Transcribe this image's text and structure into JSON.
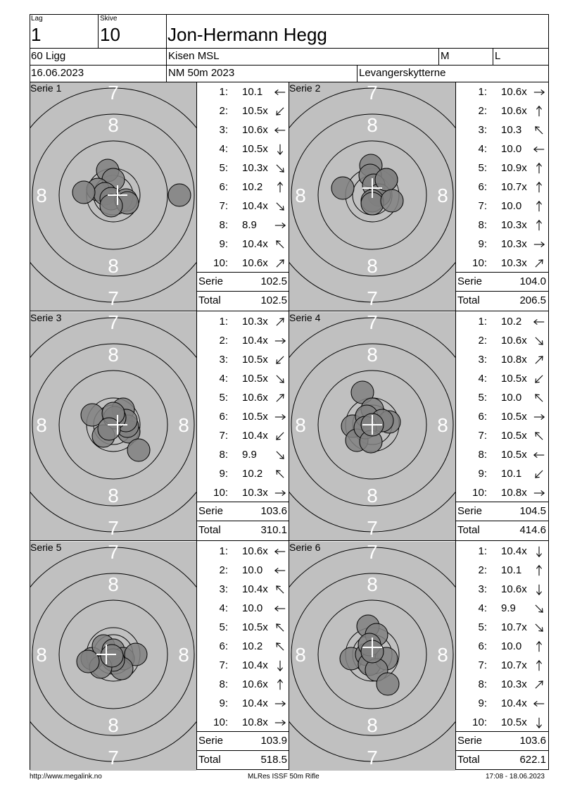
{
  "header": {
    "team_label": "Lag",
    "team_value": "1",
    "target_label": "Skive",
    "target_value": "10",
    "shooter_name": "Jon-Hermann Hegg",
    "class": "60 Ligg",
    "club": "Kisen MSL",
    "gender": "M",
    "category": "L",
    "date": "16.06.2023",
    "event": "NM 50m 2023",
    "host_club": "Levangerskytterne"
  },
  "series": [
    {
      "label": "Serie 1",
      "shots": [
        {
          "n": "1:",
          "v": "10.1",
          "dir": "left"
        },
        {
          "n": "2:",
          "v": "10.5x",
          "dir": "down-left"
        },
        {
          "n": "3:",
          "v": "10.6x",
          "dir": "left"
        },
        {
          "n": "4:",
          "v": "10.5x",
          "dir": "down"
        },
        {
          "n": "5:",
          "v": "10.3x",
          "dir": "down-right"
        },
        {
          "n": "6:",
          "v": "10.2",
          "dir": "up"
        },
        {
          "n": "7:",
          "v": "10.4x",
          "dir": "down-right"
        },
        {
          "n": "8:",
          "v": "8.9",
          "dir": "right"
        },
        {
          "n": "9:",
          "v": "10.4x",
          "dir": "up-left"
        },
        {
          "n": "10:",
          "v": "10.6x",
          "dir": "up-right"
        }
      ],
      "serie_label": "Serie",
      "serie_total": "102.5",
      "total_label": "Total",
      "running_total": "102.5"
    },
    {
      "label": "Serie 2",
      "shots": [
        {
          "n": "1:",
          "v": "10.6x",
          "dir": "right"
        },
        {
          "n": "2:",
          "v": "10.6x",
          "dir": "up"
        },
        {
          "n": "3:",
          "v": "10.3",
          "dir": "up-left"
        },
        {
          "n": "4:",
          "v": "10.0",
          "dir": "left"
        },
        {
          "n": "5:",
          "v": "10.9x",
          "dir": "up"
        },
        {
          "n": "6:",
          "v": "10.7x",
          "dir": "up"
        },
        {
          "n": "7:",
          "v": "10.0",
          "dir": "up"
        },
        {
          "n": "8:",
          "v": "10.3x",
          "dir": "up"
        },
        {
          "n": "9:",
          "v": "10.3x",
          "dir": "right"
        },
        {
          "n": "10:",
          "v": "10.3x",
          "dir": "up-right"
        }
      ],
      "serie_label": "Serie",
      "serie_total": "104.0",
      "total_label": "Total",
      "running_total": "206.5"
    },
    {
      "label": "Serie 3",
      "shots": [
        {
          "n": "1:",
          "v": "10.3x",
          "dir": "up-right"
        },
        {
          "n": "2:",
          "v": "10.4x",
          "dir": "right"
        },
        {
          "n": "3:",
          "v": "10.5x",
          "dir": "down-left"
        },
        {
          "n": "4:",
          "v": "10.5x",
          "dir": "down-right"
        },
        {
          "n": "5:",
          "v": "10.6x",
          "dir": "up-right"
        },
        {
          "n": "6:",
          "v": "10.5x",
          "dir": "right"
        },
        {
          "n": "7:",
          "v": "10.4x",
          "dir": "down-left"
        },
        {
          "n": "8:",
          "v": "9.9",
          "dir": "down-right"
        },
        {
          "n": "9:",
          "v": "10.2",
          "dir": "up-left"
        },
        {
          "n": "10:",
          "v": "10.3x",
          "dir": "right"
        }
      ],
      "serie_label": "Serie",
      "serie_total": "103.6",
      "total_label": "Total",
      "running_total": "310.1"
    },
    {
      "label": "Serie 4",
      "shots": [
        {
          "n": "1:",
          "v": "10.2",
          "dir": "left"
        },
        {
          "n": "2:",
          "v": "10.6x",
          "dir": "down-right"
        },
        {
          "n": "3:",
          "v": "10.8x",
          "dir": "up-right"
        },
        {
          "n": "4:",
          "v": "10.5x",
          "dir": "down-left"
        },
        {
          "n": "5:",
          "v": "10.0",
          "dir": "up-left"
        },
        {
          "n": "6:",
          "v": "10.5x",
          "dir": "right"
        },
        {
          "n": "7:",
          "v": "10.5x",
          "dir": "up-left"
        },
        {
          "n": "8:",
          "v": "10.5x",
          "dir": "left"
        },
        {
          "n": "9:",
          "v": "10.1",
          "dir": "down-left"
        },
        {
          "n": "10:",
          "v": "10.8x",
          "dir": "right"
        }
      ],
      "serie_label": "Serie",
      "serie_total": "104.5",
      "total_label": "Total",
      "running_total": "414.6"
    },
    {
      "label": "Serie 5",
      "shots": [
        {
          "n": "1:",
          "v": "10.6x",
          "dir": "left"
        },
        {
          "n": "2:",
          "v": "10.0",
          "dir": "left"
        },
        {
          "n": "3:",
          "v": "10.4x",
          "dir": "up-left"
        },
        {
          "n": "4:",
          "v": "10.0",
          "dir": "left"
        },
        {
          "n": "5:",
          "v": "10.5x",
          "dir": "up-left"
        },
        {
          "n": "6:",
          "v": "10.2",
          "dir": "up-left"
        },
        {
          "n": "7:",
          "v": "10.4x",
          "dir": "down"
        },
        {
          "n": "8:",
          "v": "10.6x",
          "dir": "up"
        },
        {
          "n": "9:",
          "v": "10.4x",
          "dir": "right"
        },
        {
          "n": "10:",
          "v": "10.8x",
          "dir": "right"
        }
      ],
      "serie_label": "Serie",
      "serie_total": "103.9",
      "total_label": "Total",
      "running_total": "518.5"
    },
    {
      "label": "Serie 6",
      "shots": [
        {
          "n": "1:",
          "v": "10.4x",
          "dir": "down"
        },
        {
          "n": "2:",
          "v": "10.1",
          "dir": "up"
        },
        {
          "n": "3:",
          "v": "10.6x",
          "dir": "down"
        },
        {
          "n": "4:",
          "v": "9.9",
          "dir": "down-right"
        },
        {
          "n": "5:",
          "v": "10.7x",
          "dir": "down-right"
        },
        {
          "n": "6:",
          "v": "10.0",
          "dir": "up"
        },
        {
          "n": "7:",
          "v": "10.7x",
          "dir": "up"
        },
        {
          "n": "8:",
          "v": "10.3x",
          "dir": "up-right"
        },
        {
          "n": "9:",
          "v": "10.4x",
          "dir": "left"
        },
        {
          "n": "10:",
          "v": "10.5x",
          "dir": "down"
        }
      ],
      "serie_label": "Serie",
      "serie_total": "103.6",
      "total_label": "Total",
      "running_total": "622.1"
    }
  ],
  "target_ring_labels": {
    "outer": "7",
    "inner": "8"
  },
  "footer": {
    "url": "http://www.megalink.no",
    "software": "MLRes ISSF 50m Rifle",
    "printed": "17:08 - 18.06.2023"
  },
  "colors": {
    "target_bg": "#c0c0c0",
    "shot_fill": "#808080",
    "ring": "#000000"
  }
}
